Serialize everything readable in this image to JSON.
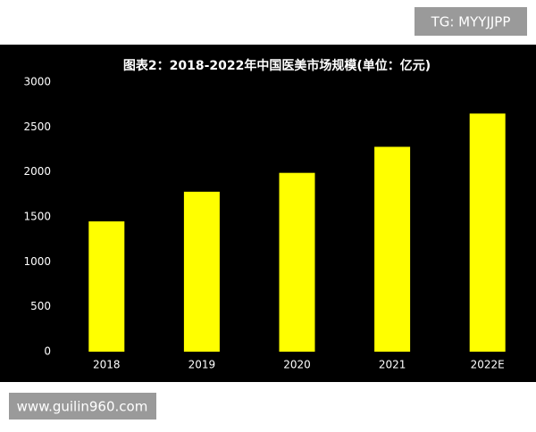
{
  "chart_data": {
    "type": "bar",
    "title": "图表2：2018-2022年中国医美市场规模(单位：亿元)",
    "categories": [
      "2018",
      "2019",
      "2020",
      "2021",
      "2022E"
    ],
    "values": [
      1450,
      1780,
      1990,
      2280,
      2650
    ],
    "color": "#ffff00",
    "ylim": [
      0,
      3000
    ],
    "yticks": [
      0,
      500,
      1000,
      1500,
      2000,
      2500,
      3000
    ],
    "grid": false
  },
  "watermarks": {
    "top_right": "TG: MYYJJPP",
    "bottom_left": "www.guilin960.com"
  }
}
